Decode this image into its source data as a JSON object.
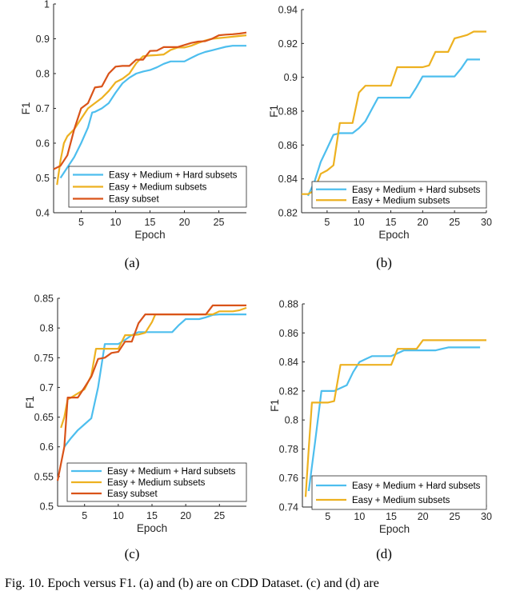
{
  "figure_caption": "Fig. 10.  Epoch versus F1. (a) and (b) are on CDD Dataset. (c) and (d) are",
  "colors": {
    "easy_medium_hard": "#4dbeee",
    "easy_medium": "#edb120",
    "easy": "#d95319"
  },
  "chart_data": [
    {
      "type": "line",
      "panel_label": "(a)",
      "xlabel": "Epoch",
      "ylabel": "F1",
      "xlim": [
        1,
        29
      ],
      "ylim": [
        0.4,
        1.0
      ],
      "xticks": [
        5,
        10,
        15,
        20,
        25
      ],
      "yticks": [
        0.4,
        0.5,
        0.6,
        0.7,
        0.8,
        0.9,
        1
      ],
      "ytick_labels": [
        "0.4",
        "0.5",
        "0.6",
        "0.7",
        "0.8",
        "0.9",
        "1"
      ],
      "grid": false,
      "legend_position": "bottom-right",
      "series": [
        {
          "name": "Easy + Medium + Hard subsets",
          "color": "#4dbeee",
          "x": [
            2,
            3,
            4,
            5,
            6,
            6.6,
            7,
            8,
            9,
            10,
            11,
            12,
            13,
            14,
            15,
            16,
            17,
            18,
            19,
            20,
            21,
            22,
            23,
            24,
            25,
            26,
            27,
            28,
            29
          ],
          "y": [
            0.5,
            0.53,
            0.56,
            0.6,
            0.645,
            0.688,
            0.69,
            0.7,
            0.715,
            0.745,
            0.772,
            0.788,
            0.8,
            0.806,
            0.81,
            0.818,
            0.828,
            0.835,
            0.835,
            0.835,
            0.845,
            0.855,
            0.862,
            0.867,
            0.872,
            0.877,
            0.88,
            0.88,
            0.88
          ]
        },
        {
          "name": "Easy + Medium subsets",
          "color": "#edb120",
          "x": [
            1.5,
            2,
            2.5,
            3,
            4,
            5,
            6,
            7,
            8,
            9,
            10,
            11,
            12,
            13,
            14,
            15,
            16,
            17,
            18,
            19,
            20,
            21,
            22,
            23,
            24,
            25,
            26,
            27,
            28,
            29
          ],
          "y": [
            0.48,
            0.55,
            0.6,
            0.62,
            0.64,
            0.67,
            0.7,
            0.715,
            0.73,
            0.75,
            0.775,
            0.785,
            0.8,
            0.83,
            0.85,
            0.852,
            0.853,
            0.855,
            0.868,
            0.875,
            0.875,
            0.88,
            0.888,
            0.895,
            0.9,
            0.902,
            0.904,
            0.906,
            0.908,
            0.91
          ]
        },
        {
          "name": "Easy subset",
          "color": "#d95319",
          "x": [
            1,
            2,
            3,
            4,
            5,
            6,
            7,
            8,
            9,
            10,
            11,
            12,
            13,
            14,
            15,
            16,
            17,
            18,
            19,
            20,
            21,
            22,
            23,
            24,
            25,
            26,
            27,
            28,
            29
          ],
          "y": [
            0.525,
            0.535,
            0.565,
            0.64,
            0.7,
            0.715,
            0.76,
            0.763,
            0.8,
            0.82,
            0.822,
            0.822,
            0.84,
            0.84,
            0.865,
            0.866,
            0.876,
            0.876,
            0.876,
            0.882,
            0.888,
            0.892,
            0.893,
            0.9,
            0.91,
            0.912,
            0.913,
            0.915,
            0.918
          ]
        }
      ]
    },
    {
      "type": "line",
      "panel_label": "(b)",
      "xlabel": "Epoch",
      "ylabel": "F1",
      "xlim": [
        1,
        30
      ],
      "ylim": [
        0.82,
        0.94
      ],
      "xticks": [
        5,
        10,
        15,
        20,
        25,
        30
      ],
      "yticks": [
        0.82,
        0.84,
        0.86,
        0.88,
        0.9,
        0.92,
        0.94
      ],
      "ytick_labels": [
        "0.82",
        "0.84",
        "0.86",
        "0.88",
        "0.9",
        "0.92",
        "0.94"
      ],
      "grid": false,
      "legend_position": "bottom-right",
      "series": [
        {
          "name": "Easy + Medium + Hard subsets",
          "color": "#4dbeee",
          "x": [
            2,
            3,
            4,
            5,
            6,
            7,
            8,
            9,
            10,
            11,
            12,
            13,
            14,
            15,
            16,
            17,
            18,
            19,
            20,
            21,
            22,
            23,
            24,
            25,
            26,
            27,
            28,
            29
          ],
          "y": [
            0.83,
            0.838,
            0.85,
            0.858,
            0.866,
            0.867,
            0.867,
            0.867,
            0.87,
            0.874,
            0.881,
            0.888,
            0.888,
            0.888,
            0.888,
            0.888,
            0.888,
            0.894,
            0.9005,
            0.9005,
            0.9005,
            0.9005,
            0.9005,
            0.9005,
            0.905,
            0.9105,
            0.9105,
            0.9105
          ]
        },
        {
          "name": "Easy + Medium subsets",
          "color": "#edb120",
          "x": [
            1,
            2,
            3,
            4,
            5,
            6,
            7,
            8,
            9,
            10,
            11,
            12,
            13,
            14,
            15,
            16,
            17,
            18,
            19,
            20,
            21,
            22,
            23,
            24,
            25,
            26,
            27,
            28,
            29,
            30
          ],
          "y": [
            0.831,
            0.831,
            0.833,
            0.843,
            0.845,
            0.848,
            0.873,
            0.873,
            0.873,
            0.891,
            0.895,
            0.895,
            0.895,
            0.895,
            0.895,
            0.906,
            0.906,
            0.906,
            0.906,
            0.906,
            0.907,
            0.915,
            0.915,
            0.915,
            0.923,
            0.924,
            0.925,
            0.927,
            0.927,
            0.927
          ]
        }
      ]
    },
    {
      "type": "line",
      "panel_label": "(c)",
      "xlabel": "Epoch",
      "ylabel": "F1",
      "xlim": [
        1,
        29
      ],
      "ylim": [
        0.5,
        0.85
      ],
      "xticks": [
        5,
        10,
        15,
        20,
        25
      ],
      "yticks": [
        0.5,
        0.55,
        0.6,
        0.65,
        0.7,
        0.75,
        0.8,
        0.85
      ],
      "ytick_labels": [
        "0.5",
        "0.55",
        "0.6",
        "0.65",
        "0.7",
        "0.75",
        "0.8",
        "0.85"
      ],
      "grid": false,
      "legend_position": "bottom-right",
      "series": [
        {
          "name": "Easy + Medium + Hard subsets",
          "color": "#4dbeee",
          "x": [
            2,
            3,
            4,
            5,
            6,
            7,
            8,
            9,
            10,
            11,
            12,
            13,
            14,
            15,
            16,
            17,
            18,
            19,
            20,
            21,
            22,
            23,
            24,
            25,
            26,
            27,
            28,
            29
          ],
          "y": [
            0.6,
            0.615,
            0.628,
            0.638,
            0.648,
            0.7,
            0.773,
            0.773,
            0.773,
            0.78,
            0.788,
            0.793,
            0.793,
            0.793,
            0.793,
            0.793,
            0.793,
            0.805,
            0.815,
            0.815,
            0.815,
            0.818,
            0.822,
            0.823,
            0.823,
            0.823,
            0.823,
            0.823
          ]
        },
        {
          "name": "Easy + Medium subsets",
          "color": "#edb120",
          "x": [
            1.5,
            2,
            2.5,
            3,
            4,
            5,
            6,
            6.7,
            7,
            8,
            9,
            10,
            11,
            12,
            13,
            14,
            15,
            15.5,
            16,
            17,
            18,
            19,
            20,
            21,
            22,
            23,
            24,
            25,
            26,
            27,
            28,
            29
          ],
          "y": [
            0.632,
            0.65,
            0.68,
            0.683,
            0.69,
            0.697,
            0.72,
            0.765,
            0.765,
            0.765,
            0.765,
            0.765,
            0.788,
            0.788,
            0.789,
            0.792,
            0.81,
            0.823,
            0.823,
            0.823,
            0.823,
            0.823,
            0.823,
            0.823,
            0.823,
            0.823,
            0.823,
            0.828,
            0.828,
            0.828,
            0.83,
            0.834
          ]
        },
        {
          "name": "Easy subset",
          "color": "#d95319",
          "x": [
            1,
            2,
            2.5,
            3,
            4,
            5,
            6,
            7,
            8,
            9,
            10,
            11,
            12,
            13,
            14,
            15,
            16,
            17,
            18,
            19,
            20,
            21,
            22,
            23,
            24,
            25,
            26,
            27,
            28,
            29
          ],
          "y": [
            0.543,
            0.6,
            0.683,
            0.683,
            0.683,
            0.7,
            0.718,
            0.748,
            0.75,
            0.758,
            0.76,
            0.777,
            0.777,
            0.808,
            0.823,
            0.823,
            0.823,
            0.823,
            0.823,
            0.823,
            0.823,
            0.823,
            0.823,
            0.823,
            0.838,
            0.838,
            0.838,
            0.838,
            0.838,
            0.838
          ]
        }
      ]
    },
    {
      "type": "line",
      "panel_label": "(d)",
      "xlabel": "Epoch",
      "ylabel": "F1",
      "xlim": [
        1,
        30
      ],
      "ylim": [
        0.74,
        0.88
      ],
      "xticks": [
        5,
        10,
        15,
        20,
        25,
        30
      ],
      "yticks": [
        0.74,
        0.76,
        0.78,
        0.8,
        0.82,
        0.84,
        0.86,
        0.88
      ],
      "ytick_labels": [
        "0.74",
        "0.76",
        "0.78",
        "0.8",
        "0.82",
        "0.84",
        "0.86",
        "0.88"
      ],
      "grid": false,
      "legend_position": "bottom-right",
      "series": [
        {
          "name": "Easy + Medium + Hard subsets",
          "color": "#4dbeee",
          "x": [
            2,
            3,
            4,
            5,
            6,
            7,
            8,
            9,
            10,
            11,
            12,
            13,
            14,
            15,
            16,
            17,
            18,
            19,
            20,
            21,
            22,
            23,
            24,
            25,
            26,
            27,
            28,
            29
          ],
          "y": [
            0.751,
            0.785,
            0.82,
            0.82,
            0.82,
            0.822,
            0.824,
            0.833,
            0.84,
            0.842,
            0.844,
            0.844,
            0.844,
            0.844,
            0.846,
            0.848,
            0.848,
            0.848,
            0.848,
            0.848,
            0.848,
            0.849,
            0.85,
            0.85,
            0.85,
            0.85,
            0.85,
            0.85
          ]
        },
        {
          "name": "Easy + Medium subsets",
          "color": "#edb120",
          "x": [
            1.5,
            2,
            2.5,
            3,
            4,
            5,
            6,
            7,
            8,
            9,
            10,
            11,
            12,
            13,
            14,
            15,
            16,
            17,
            18,
            19,
            20,
            21,
            22,
            23,
            24,
            25,
            26,
            27,
            28,
            29,
            30
          ],
          "y": [
            0.747,
            0.78,
            0.812,
            0.812,
            0.812,
            0.812,
            0.813,
            0.838,
            0.838,
            0.838,
            0.838,
            0.838,
            0.838,
            0.838,
            0.838,
            0.838,
            0.849,
            0.849,
            0.849,
            0.849,
            0.855,
            0.855,
            0.855,
            0.855,
            0.855,
            0.855,
            0.855,
            0.855,
            0.855,
            0.855,
            0.855
          ]
        }
      ]
    }
  ]
}
